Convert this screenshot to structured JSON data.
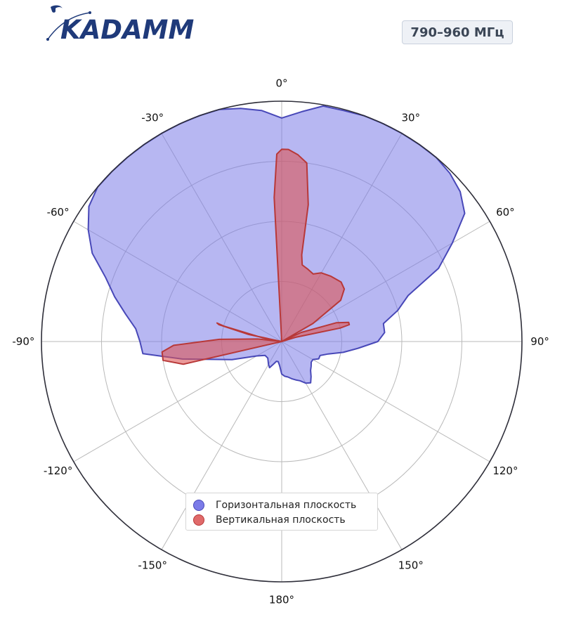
{
  "logo": {
    "text": "KADAMM"
  },
  "badge": {
    "text": "790–960 МГц"
  },
  "chart_data": {
    "type": "polar",
    "theta_unit": "deg",
    "theta_zero": "top",
    "direction": "clockwise",
    "r_max": 1.0,
    "r_grid": [
      0.25,
      0.5,
      0.75,
      1.0
    ],
    "theta_ticks": [
      0,
      30,
      60,
      90,
      120,
      150,
      180,
      -150,
      -120,
      -90,
      -60,
      -30
    ],
    "theta_tick_labels": [
      "0°",
      "30°",
      "60°",
      "90°",
      "120°",
      "150°",
      "180°",
      "-150°",
      "-120°",
      "-90°",
      "-60°",
      "-30°"
    ],
    "legend_position": "bottom-center",
    "series": [
      {
        "name": "Горизонтальная плоскость",
        "color": "#7b7be8",
        "edge": "#4848b8",
        "points": [
          [
            0,
            0.93
          ],
          [
            5,
            0.96
          ],
          [
            10,
            0.995
          ],
          [
            15,
            0.995
          ],
          [
            20,
            1.0
          ],
          [
            25,
            1.0
          ],
          [
            30,
            1.0
          ],
          [
            35,
            1.0
          ],
          [
            40,
            1.0
          ],
          [
            45,
            0.99
          ],
          [
            50,
            0.97
          ],
          [
            55,
            0.93
          ],
          [
            60,
            0.82
          ],
          [
            65,
            0.72
          ],
          [
            70,
            0.56
          ],
          [
            75,
            0.5
          ],
          [
            80,
            0.43
          ],
          [
            85,
            0.43
          ],
          [
            90,
            0.4
          ],
          [
            95,
            0.32
          ],
          [
            100,
            0.26
          ],
          [
            105,
            0.2
          ],
          [
            110,
            0.17
          ],
          [
            115,
            0.17
          ],
          [
            120,
            0.15
          ],
          [
            125,
            0.15
          ],
          [
            130,
            0.16
          ],
          [
            135,
            0.17
          ],
          [
            140,
            0.19
          ],
          [
            145,
            0.21
          ],
          [
            150,
            0.2
          ],
          [
            155,
            0.18
          ],
          [
            160,
            0.17
          ],
          [
            165,
            0.16
          ],
          [
            170,
            0.15
          ],
          [
            175,
            0.145
          ],
          [
            180,
            0.135
          ],
          [
            -180,
            0.135
          ],
          [
            -175,
            0.1
          ],
          [
            -170,
            0.085
          ],
          [
            -165,
            0.085
          ],
          [
            -160,
            0.1
          ],
          [
            -155,
            0.12
          ],
          [
            -150,
            0.11
          ],
          [
            -140,
            0.09
          ],
          [
            -130,
            0.09
          ],
          [
            -120,
            0.12
          ],
          [
            -110,
            0.22
          ],
          [
            -100,
            0.42
          ],
          [
            -95,
            0.58
          ],
          [
            -90,
            0.59
          ],
          [
            -85,
            0.61
          ],
          [
            -80,
            0.66
          ],
          [
            -75,
            0.72
          ],
          [
            -70,
            0.78
          ],
          [
            -65,
            0.87
          ],
          [
            -60,
            0.93
          ],
          [
            -55,
            0.98
          ],
          [
            -50,
            1.0
          ],
          [
            -45,
            1.0
          ],
          [
            -40,
            1.0
          ],
          [
            -35,
            1.0
          ],
          [
            -30,
            1.0
          ],
          [
            -25,
            1.0
          ],
          [
            -20,
            1.0
          ],
          [
            -15,
            1.0
          ],
          [
            -10,
            0.985
          ],
          [
            -5,
            0.965
          ],
          [
            0,
            0.93
          ]
        ]
      },
      {
        "name": "Вертикальная плоскость",
        "color": "#dc5555",
        "edge": "#b83838",
        "points": [
          [
            0,
            0.0
          ],
          [
            -3,
            0.6
          ],
          [
            -1.5,
            0.78
          ],
          [
            0,
            0.8
          ],
          [
            2,
            0.8
          ],
          [
            5,
            0.78
          ],
          [
            8,
            0.75
          ],
          [
            11,
            0.58
          ],
          [
            13,
            0.37
          ],
          [
            15,
            0.33
          ],
          [
            20,
            0.32
          ],
          [
            25,
            0.31
          ],
          [
            30,
            0.33
          ],
          [
            37,
            0.34
          ],
          [
            45,
            0.35
          ],
          [
            50,
            0.34
          ],
          [
            55,
            0.3
          ],
          [
            60,
            0.15
          ],
          [
            62,
            0.0
          ],
          [
            65,
            0.09
          ],
          [
            71,
            0.24
          ],
          [
            74,
            0.29
          ],
          [
            76,
            0.29
          ],
          [
            77,
            0.25
          ],
          [
            73,
            0.06
          ],
          [
            70,
            0.0
          ],
          [
            0,
            0.0
          ],
          [
            -110,
            0.0
          ],
          [
            -103,
            0.42
          ],
          [
            -99,
            0.5
          ],
          [
            -95,
            0.5
          ],
          [
            -92,
            0.45
          ],
          [
            -88,
            0.26
          ],
          [
            -84,
            0.1
          ],
          [
            -82,
            0.0
          ],
          [
            -78,
            0.14
          ],
          [
            -75,
            0.27
          ],
          [
            -74,
            0.28
          ],
          [
            -75,
            0.25
          ],
          [
            -79,
            0.08
          ],
          [
            -80,
            0.0
          ]
        ]
      }
    ]
  }
}
